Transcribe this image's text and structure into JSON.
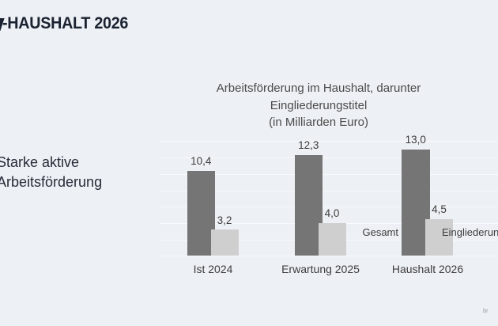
{
  "header": {
    "title": "-HAUSHALT 2026"
  },
  "side_text": {
    "line1": "Starke aktive",
    "line2": "Arbeitsförderung"
  },
  "chart_data": {
    "type": "bar",
    "title": "Arbeitsförderung im Haushalt, darunter Eingliederungstitel (in Milliarden Euro)",
    "title_lines": [
      "Arbeitsförderung im Haushalt, darunter",
      "Eingliederungstitel",
      "(in Milliarden Euro)"
    ],
    "categories": [
      "Ist 2024",
      "Erwartung 2025",
      "Haushalt 2026"
    ],
    "series": [
      {
        "name": "Gesamt",
        "values": [
          10.4,
          12.3,
          13.0
        ],
        "labels": [
          "10,4",
          "12,3",
          "13,0"
        ],
        "color": "#757575"
      },
      {
        "name": "Eingliederung",
        "values": [
          3.2,
          4.0,
          4.5
        ],
        "labels": [
          "3,2",
          "4,0",
          "4,5"
        ],
        "color": "#cfcfcf"
      }
    ],
    "unit": "Milliarden Euro",
    "ylim": [
      0,
      14
    ],
    "grid_step": 2,
    "grid": true,
    "legend_position": "inline-near-last-group",
    "axis_tick_labels_visible": false
  },
  "footer": {
    "watermark_fragment": "br"
  },
  "colors": {
    "background": "#edf0f4",
    "bar_total": "#757575",
    "bar_subset": "#cfcfcf",
    "gridline": "#f8fafc",
    "title_text": "#1a2231",
    "side_text": "#262b38",
    "chart_title_text": "#4b4b4b",
    "label_text": "#3d3d3d",
    "watermark_text": "#969ca4"
  }
}
